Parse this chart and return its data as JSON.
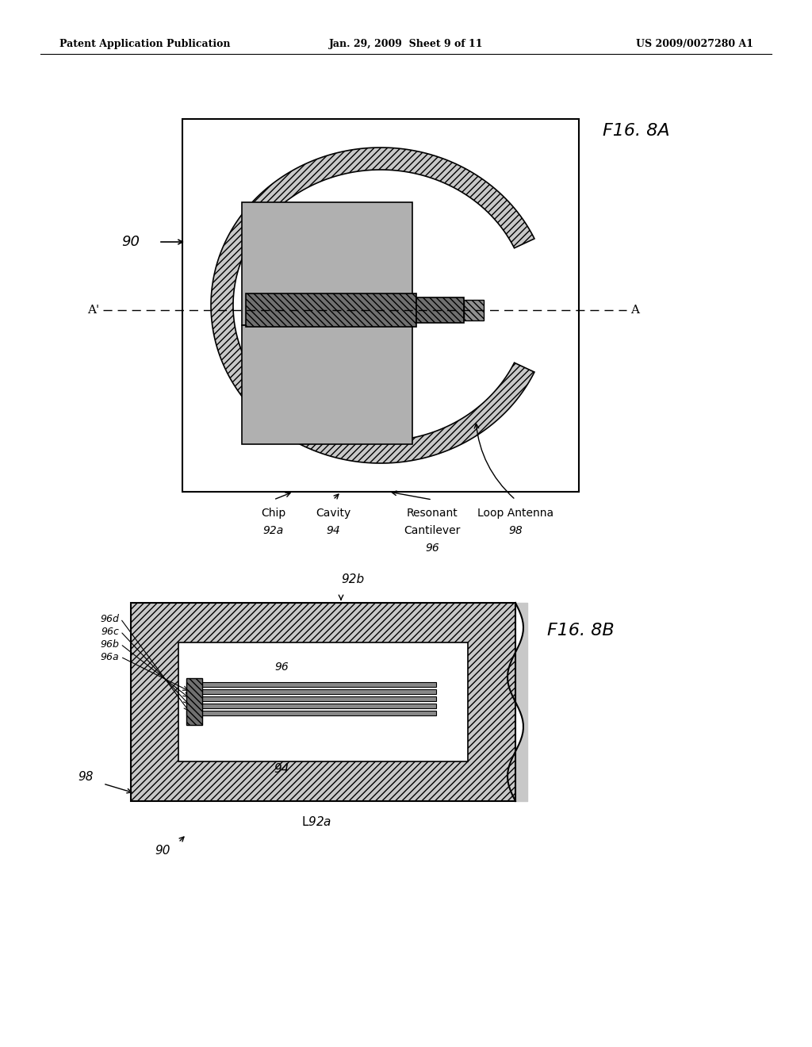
{
  "bg_color": "#ffffff",
  "header_left": "Patent Application Publication",
  "header_mid": "Jan. 29, 2009  Sheet 9 of 11",
  "header_right": "US 2009/0027280 A1",
  "fig8a_label": "F16. 8A",
  "fig8b_label": "F16. 8B"
}
